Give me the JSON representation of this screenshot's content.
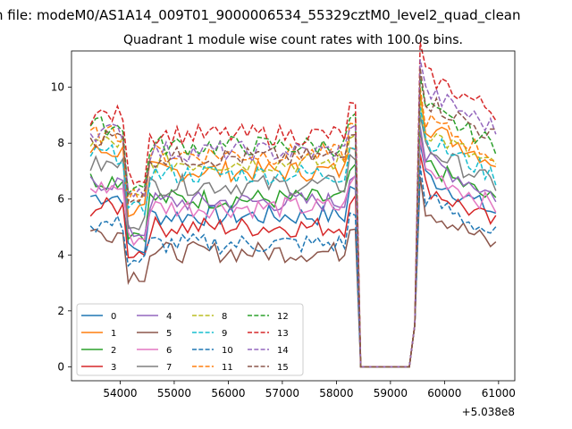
{
  "chart_data": {
    "type": "line",
    "suptitle": "n file: modeM0/AS1A14_009T01_9000006534_55329cztM0_level2_quad_clean",
    "title": "Quadrant 1 module wise count rates with 100.0s bins.",
    "xlabel": "",
    "ylabel": "",
    "x_offset_label": "+5.038e8",
    "xlim": [
      53100,
      61300
    ],
    "ylim": [
      -0.5,
      11.3
    ],
    "xticks": [
      54000,
      55000,
      56000,
      57000,
      58000,
      59000,
      60000,
      61000
    ],
    "yticks": [
      0,
      2,
      4,
      6,
      8,
      10
    ],
    "legend": {
      "placement": "lower-left",
      "columns": 4
    },
    "x_start": 53450,
    "x_step": 100,
    "points": 76,
    "profile": {
      "gap_start": 58350,
      "gap_end": 59450,
      "dip_start": 54150,
      "dip_end": 54500,
      "end_dip_start": 59500
    },
    "series": [
      {
        "name": "0",
        "style": "solid",
        "color": "#1f77b4",
        "base": 5.4,
        "dip": 4.2,
        "post": 6.0
      },
      {
        "name": "1",
        "style": "solid",
        "color": "#ff7f0e",
        "base": 7.0,
        "dip": 5.6,
        "post": 7.8
      },
      {
        "name": "2",
        "style": "solid",
        "color": "#2ca02c",
        "base": 6.0,
        "dip": 4.8,
        "post": 6.4
      },
      {
        "name": "3",
        "style": "solid",
        "color": "#d62728",
        "base": 5.0,
        "dip": 4.1,
        "post": 5.6
      },
      {
        "name": "4",
        "style": "solid",
        "color": "#9467bd",
        "base": 5.9,
        "dip": 4.8,
        "post": 6.6
      },
      {
        "name": "5",
        "style": "solid",
        "color": "#8c564b",
        "base": 4.1,
        "dip": 3.3,
        "post": 4.8
      },
      {
        "name": "6",
        "style": "solid",
        "color": "#e377c2",
        "base": 5.7,
        "dip": 4.6,
        "post": 6.2
      },
      {
        "name": "7",
        "style": "solid",
        "color": "#7f7f7f",
        "base": 6.5,
        "dip": 5.2,
        "post": 7.0
      },
      {
        "name": "8",
        "style": "dashed",
        "color": "#bcbd22",
        "base": 7.3,
        "dip": 6.0,
        "post": 7.6
      },
      {
        "name": "9",
        "style": "dashed",
        "color": "#17becf",
        "base": 6.9,
        "dip": 5.6,
        "post": 7.3
      },
      {
        "name": "10",
        "style": "dashed",
        "color": "#1f77b4",
        "base": 4.4,
        "dip": 3.8,
        "post": 5.2
      },
      {
        "name": "11",
        "style": "dashed",
        "color": "#ff7f0e",
        "base": 7.6,
        "dip": 6.2,
        "post": 8.0
      },
      {
        "name": "12",
        "style": "dashed",
        "color": "#2ca02c",
        "base": 7.9,
        "dip": 6.4,
        "post": 8.4
      },
      {
        "name": "13",
        "style": "dashed",
        "color": "#d62728",
        "base": 8.3,
        "dip": 6.8,
        "post": 9.6
      },
      {
        "name": "14",
        "style": "dashed",
        "color": "#9467bd",
        "base": 7.7,
        "dip": 6.3,
        "post": 9.0
      },
      {
        "name": "15",
        "style": "dashed",
        "color": "#8c564b",
        "base": 7.5,
        "dip": 6.1,
        "post": 8.7
      }
    ]
  }
}
